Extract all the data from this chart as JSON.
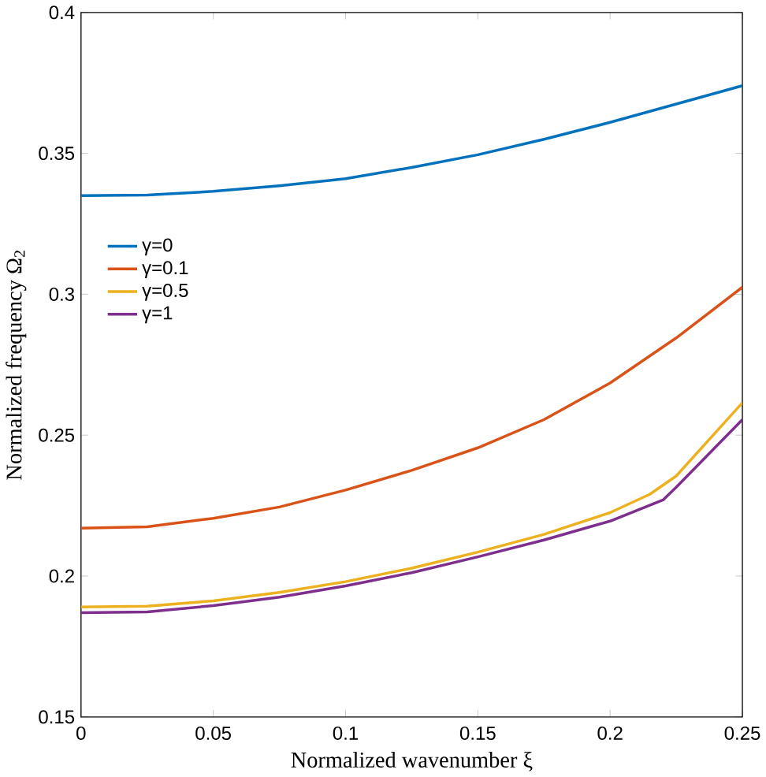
{
  "chart_data": {
    "type": "line",
    "xlabel": "Normalized wavenumber  ξ",
    "ylabel": "Normalized frequency  Ω$_{2}$",
    "xlim": [
      0,
      0.25
    ],
    "ylim": [
      0.15,
      0.4
    ],
    "xticks": [
      0,
      0.05,
      0.1,
      0.15,
      0.2,
      0.25
    ],
    "yticks": [
      0.15,
      0.2,
      0.25,
      0.3,
      0.35,
      0.4
    ],
    "grid": false,
    "legend": "left",
    "marker": "none",
    "line_style": "solid",
    "series": [
      {
        "name": "γ=0",
        "color": "#0072bd",
        "x": [
          0,
          0.025,
          0.05,
          0.075,
          0.1,
          0.125,
          0.15,
          0.175,
          0.2,
          0.225,
          0.25
        ],
        "values": [
          0.335,
          0.3352,
          0.3365,
          0.3385,
          0.341,
          0.345,
          0.3495,
          0.355,
          0.361,
          0.3675,
          0.374
        ]
      },
      {
        "name": "γ=0.1",
        "color": "#d95319",
        "x": [
          0,
          0.025,
          0.05,
          0.075,
          0.1,
          0.125,
          0.15,
          0.175,
          0.2,
          0.225,
          0.25
        ],
        "values": [
          0.217,
          0.2175,
          0.2205,
          0.2245,
          0.2305,
          0.2375,
          0.2455,
          0.2555,
          0.2685,
          0.2845,
          0.3025
        ]
      },
      {
        "name": "γ=0.5",
        "color": "#edb120",
        "x": [
          0,
          0.025,
          0.05,
          0.075,
          0.1,
          0.125,
          0.15,
          0.175,
          0.2,
          0.215,
          0.225,
          0.25
        ],
        "values": [
          0.189,
          0.1893,
          0.1912,
          0.1942,
          0.198,
          0.2028,
          0.2085,
          0.2148,
          0.2225,
          0.229,
          0.2355,
          0.2615
        ]
      },
      {
        "name": "γ=1",
        "color": "#7e2f8e",
        "x": [
          0,
          0.025,
          0.05,
          0.075,
          0.1,
          0.125,
          0.15,
          0.175,
          0.2,
          0.22,
          0.225,
          0.25
        ],
        "values": [
          0.187,
          0.1873,
          0.1895,
          0.1925,
          0.1965,
          0.2012,
          0.2068,
          0.2128,
          0.2195,
          0.227,
          0.2315,
          0.2555
        ]
      }
    ]
  }
}
